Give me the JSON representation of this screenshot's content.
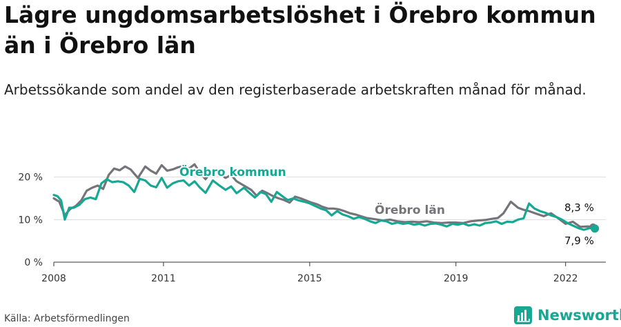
{
  "title": "Lägre ungdomsarbetslöshet i Örebro kommun än i Örebro län",
  "subtitle": "Arbetssökande som andel av den registerbaserade arbetskraften månad för månad.",
  "source": "Källa: Arbetsförmedlingen",
  "brand": "Newsworthy",
  "chart_data": {
    "type": "line",
    "x_range": [
      2008,
      2023.1
    ],
    "ylim": [
      0,
      24
    ],
    "yticks": [
      {
        "v": 0,
        "label": "0 %"
      },
      {
        "v": 10,
        "label": "10 %"
      },
      {
        "v": 20,
        "label": "20 %"
      }
    ],
    "xticks": [
      {
        "v": 2008,
        "label": "2008"
      },
      {
        "v": 2011,
        "label": "2011"
      },
      {
        "v": 2015,
        "label": "2015"
      },
      {
        "v": 2019,
        "label": "2019"
      },
      {
        "v": 2022,
        "label": "2022"
      }
    ],
    "series": [
      {
        "name": "Örebro län",
        "color": "#76737a",
        "x": [
          2008.0,
          2008.15,
          2008.3,
          2008.45,
          2008.6,
          2008.75,
          2008.9,
          2009.05,
          2009.2,
          2009.35,
          2009.5,
          2009.65,
          2009.8,
          2009.95,
          2010.1,
          2010.3,
          2010.5,
          2010.65,
          2010.8,
          2010.95,
          2011.1,
          2011.25,
          2011.4,
          2011.55,
          2011.7,
          2011.85,
          2012.0,
          2012.15,
          2012.35,
          2012.5,
          2012.7,
          2012.85,
          2013.0,
          2013.2,
          2013.4,
          2013.55,
          2013.7,
          2013.85,
          2014.0,
          2014.15,
          2014.3,
          2014.45,
          2014.6,
          2014.75,
          2014.9,
          2015.05,
          2015.2,
          2015.35,
          2015.5,
          2015.65,
          2015.8,
          2015.95,
          2016.1,
          2016.25,
          2016.4,
          2016.55,
          2016.7,
          2016.85,
          2017.0,
          2017.2,
          2017.4,
          2017.6,
          2017.8,
          2018.0,
          2018.2,
          2018.4,
          2018.6,
          2018.8,
          2019.0,
          2019.2,
          2019.4,
          2019.6,
          2019.8,
          2020.0,
          2020.15,
          2020.3,
          2020.5,
          2020.7,
          2020.85,
          2021.0,
          2021.2,
          2021.4,
          2021.6,
          2021.8,
          2022.0,
          2022.2,
          2022.4,
          2022.6,
          2022.75
        ],
        "y": [
          15.0,
          14.2,
          11.0,
          12.5,
          13.2,
          14.5,
          16.8,
          17.5,
          18.0,
          17.2,
          20.5,
          22.0,
          21.6,
          22.5,
          21.8,
          19.8,
          22.5,
          21.5,
          20.8,
          22.8,
          21.5,
          21.8,
          22.3,
          22.6,
          22.0,
          23.0,
          21.0,
          19.5,
          21.8,
          21.0,
          19.8,
          20.5,
          19.0,
          18.0,
          17.0,
          15.6,
          16.8,
          16.2,
          15.5,
          15.0,
          14.6,
          14.0,
          15.4,
          15.0,
          14.5,
          14.0,
          13.6,
          13.0,
          12.6,
          12.6,
          12.4,
          12.0,
          11.5,
          11.2,
          10.8,
          10.4,
          10.2,
          10.0,
          9.8,
          10.0,
          9.6,
          9.4,
          9.5,
          9.4,
          9.6,
          9.3,
          9.2,
          9.3,
          9.3,
          9.2,
          9.6,
          9.8,
          9.9,
          10.2,
          10.4,
          11.5,
          14.2,
          12.8,
          12.3,
          12.0,
          11.4,
          10.8,
          11.5,
          10.3,
          9.0,
          9.5,
          8.3,
          8.4,
          8.3
        ]
      },
      {
        "name": "Örebro kommun",
        "color": "#17a894",
        "x": [
          2008.0,
          2008.1,
          2008.2,
          2008.3,
          2008.42,
          2008.55,
          2008.7,
          2008.85,
          2009.0,
          2009.15,
          2009.3,
          2009.45,
          2009.6,
          2009.75,
          2009.9,
          2010.05,
          2010.2,
          2010.35,
          2010.5,
          2010.65,
          2010.8,
          2010.95,
          2011.1,
          2011.25,
          2011.4,
          2011.55,
          2011.7,
          2011.85,
          2012.0,
          2012.15,
          2012.35,
          2012.5,
          2012.7,
          2012.85,
          2013.0,
          2013.2,
          2013.35,
          2013.5,
          2013.65,
          2013.8,
          2013.95,
          2014.1,
          2014.25,
          2014.4,
          2014.55,
          2014.7,
          2014.85,
          2015.0,
          2015.15,
          2015.3,
          2015.45,
          2015.6,
          2015.75,
          2015.9,
          2016.05,
          2016.2,
          2016.35,
          2016.5,
          2016.65,
          2016.8,
          2016.95,
          2017.1,
          2017.25,
          2017.4,
          2017.55,
          2017.7,
          2017.85,
          2018.0,
          2018.15,
          2018.3,
          2018.45,
          2018.6,
          2018.75,
          2018.9,
          2019.05,
          2019.2,
          2019.35,
          2019.5,
          2019.65,
          2019.8,
          2019.95,
          2020.1,
          2020.25,
          2020.4,
          2020.55,
          2020.7,
          2020.85,
          2021.0,
          2021.15,
          2021.3,
          2021.45,
          2021.6,
          2021.75,
          2021.9,
          2022.05,
          2022.2,
          2022.35,
          2022.5,
          2022.65,
          2022.8
        ],
        "y": [
          15.8,
          15.5,
          14.5,
          10.0,
          12.8,
          12.8,
          13.5,
          14.8,
          15.2,
          14.8,
          18.5,
          19.5,
          18.8,
          19.0,
          18.8,
          18.0,
          16.5,
          19.6,
          19.2,
          18.0,
          17.6,
          19.8,
          17.5,
          18.5,
          19.0,
          19.2,
          18.0,
          19.0,
          17.5,
          16.3,
          19.2,
          18.2,
          17.0,
          17.8,
          16.2,
          17.5,
          16.3,
          15.2,
          16.5,
          16.0,
          14.2,
          16.5,
          15.5,
          14.6,
          15.0,
          14.5,
          14.2,
          13.8,
          13.2,
          12.6,
          12.2,
          11.0,
          12.0,
          11.2,
          10.8,
          10.2,
          10.6,
          10.2,
          9.6,
          9.2,
          9.8,
          9.6,
          9.0,
          9.3,
          9.0,
          9.2,
          8.8,
          9.0,
          8.6,
          9.0,
          9.1,
          8.8,
          8.4,
          9.0,
          8.8,
          9.1,
          8.6,
          8.9,
          8.6,
          9.2,
          9.3,
          9.6,
          9.0,
          9.5,
          9.4,
          10.0,
          10.3,
          13.8,
          12.6,
          12.0,
          11.6,
          11.0,
          10.6,
          10.0,
          9.2,
          8.6,
          8.0,
          7.6,
          8.0,
          7.9
        ]
      }
    ],
    "labels": {
      "kommun": "Örebro kommun",
      "lan": "Örebro län",
      "end_lan": "8,3 %",
      "end_kommun": "7,9 %"
    }
  }
}
